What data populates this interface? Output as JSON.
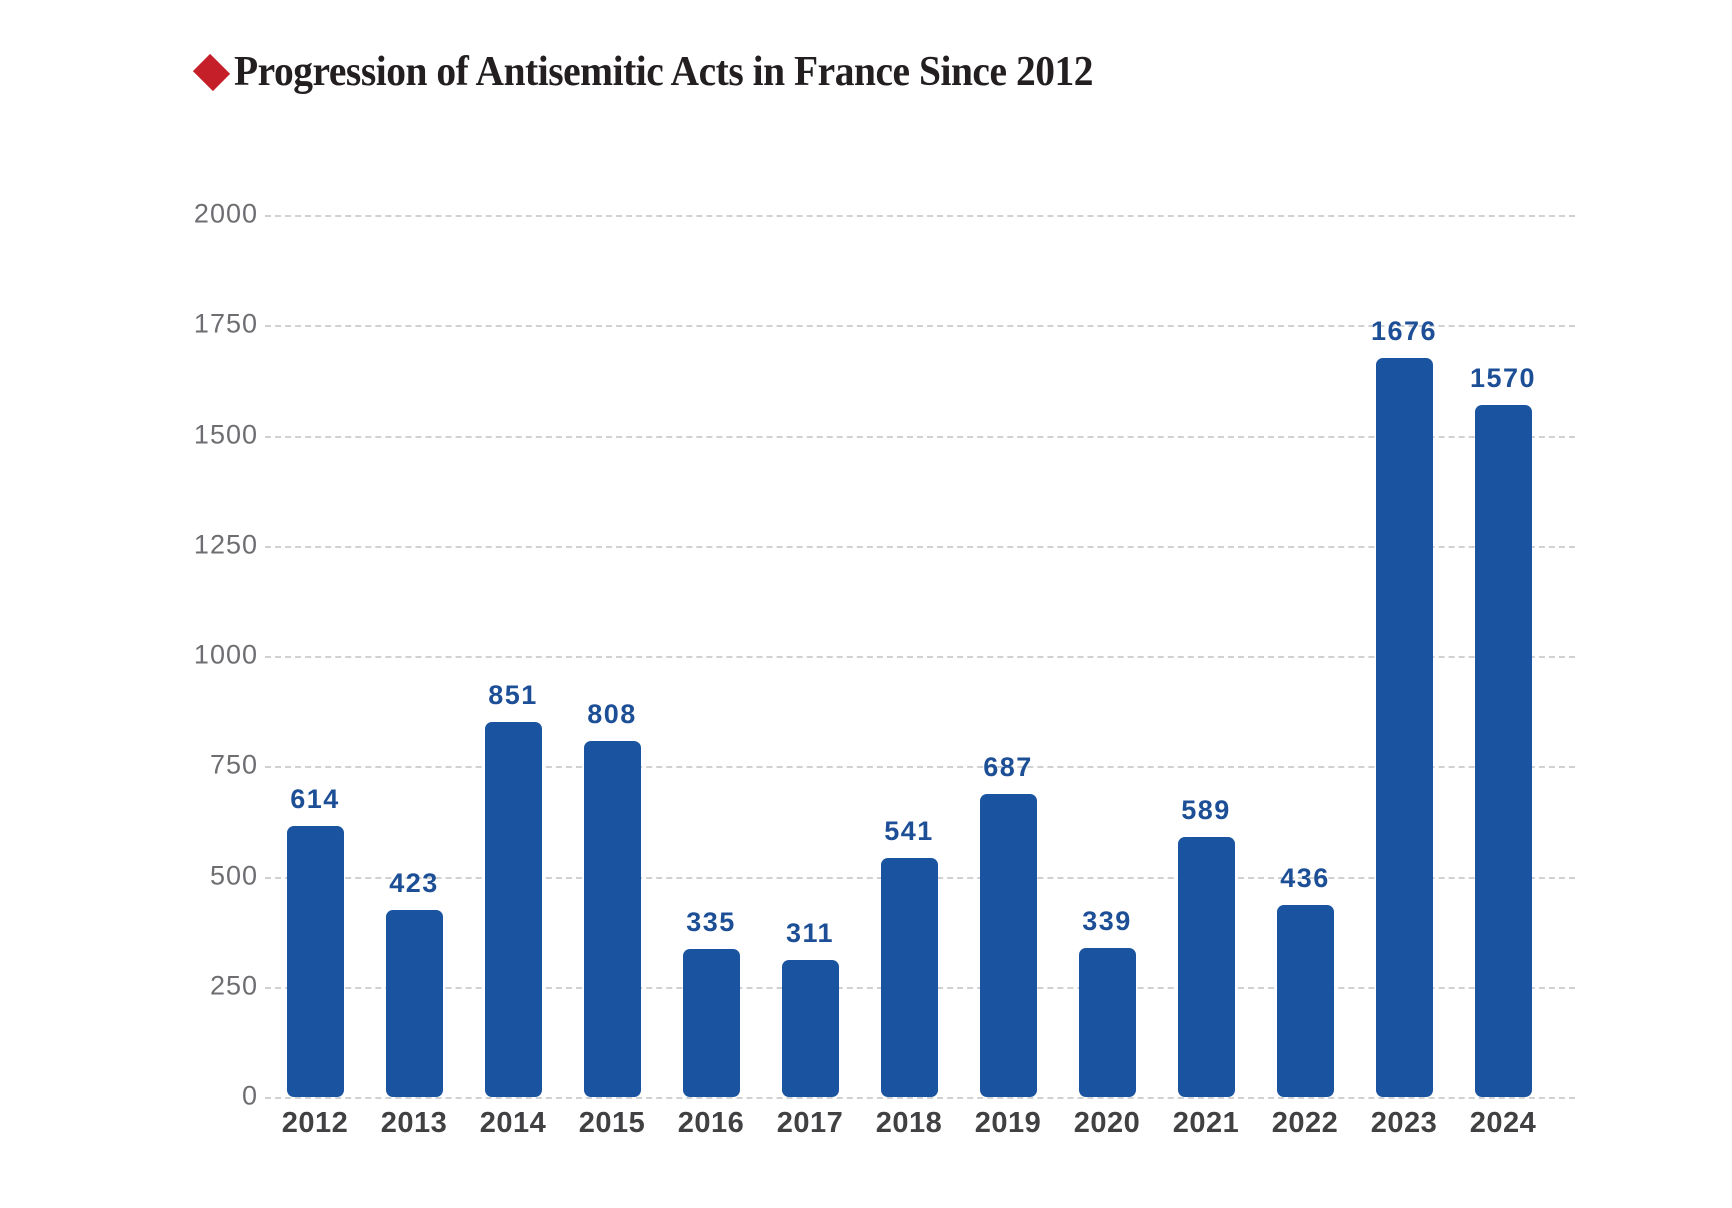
{
  "title": {
    "text": "Progression of Antisemitic Acts in France Since 2012",
    "bullet_icon": "diamond-icon"
  },
  "colors": {
    "accent_red": "#c5202a",
    "title_text": "#231f20",
    "bar_blue": "#1a54a1",
    "value_label_blue": "#1d4f97",
    "year_label_gray": "#414042",
    "ytick_gray": "#6d6e71",
    "gridline_gray": "#cfd1d3",
    "background": "#ffffff"
  },
  "chart_data": {
    "type": "bar",
    "title": "Progression of Antisemitic Acts in France Since 2012",
    "categories": [
      "2012",
      "2013",
      "2014",
      "2015",
      "2016",
      "2017",
      "2018",
      "2019",
      "2020",
      "2021",
      "2022",
      "2023",
      "2024"
    ],
    "values": [
      614,
      423,
      851,
      808,
      335,
      311,
      541,
      687,
      339,
      589,
      436,
      1676,
      1570
    ],
    "xlabel": "",
    "ylabel": "",
    "ylim": [
      0,
      2000
    ],
    "yticks": [
      0,
      250,
      500,
      750,
      1000,
      1250,
      1500,
      1750,
      2000
    ],
    "grid": "horizontal-dashed",
    "legend": "none",
    "data_labels": true
  }
}
